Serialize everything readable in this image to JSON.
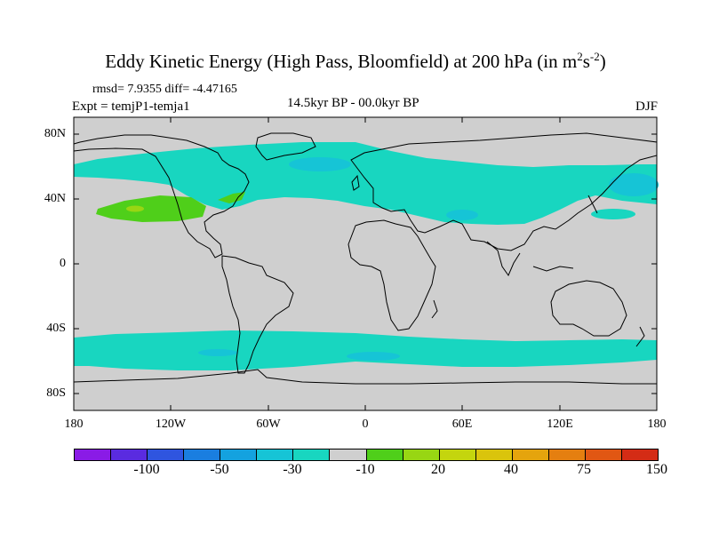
{
  "title": {
    "main": "Eddy Kinetic Energy (High Pass, Bloomfield) at 200 hPa (in m",
    "unit_sup_1": "2",
    "unit_mid": "s",
    "unit_sup_2": "-2",
    "unit_end": ")"
  },
  "stats": "rmsd= 7.9355 diff= -4.47165",
  "experiment": "Expt = temjP1-temja1",
  "period": "14.5kyr BP - 00.0kyr BP",
  "season": "DJF",
  "lat_labels": [
    "80N",
    "40N",
    "0",
    "40S",
    "80S"
  ],
  "lon_labels": [
    "180",
    "120W",
    "60W",
    "0",
    "60E",
    "120E",
    "180"
  ],
  "colorbar": {
    "colors": [
      "#8a1be6",
      "#5a2be0",
      "#2f55df",
      "#1a7ee0",
      "#14a2df",
      "#16c4d6",
      "#18d6c0",
      "#cfcfcf",
      "#4fcf1a",
      "#98d613",
      "#c4d50e",
      "#dac40c",
      "#e5a40d",
      "#e57f10",
      "#e15713",
      "#d42c15"
    ],
    "labels": [
      "-100",
      "-50",
      "-30",
      "-10",
      "20",
      "40",
      "75",
      "150"
    ]
  },
  "field": {
    "background": "#cfcfcf",
    "minus_10": "#18d6c0",
    "minus_30": "#16c4d6",
    "plus_20": "#4fcf1a",
    "plus_40": "#98d613"
  }
}
